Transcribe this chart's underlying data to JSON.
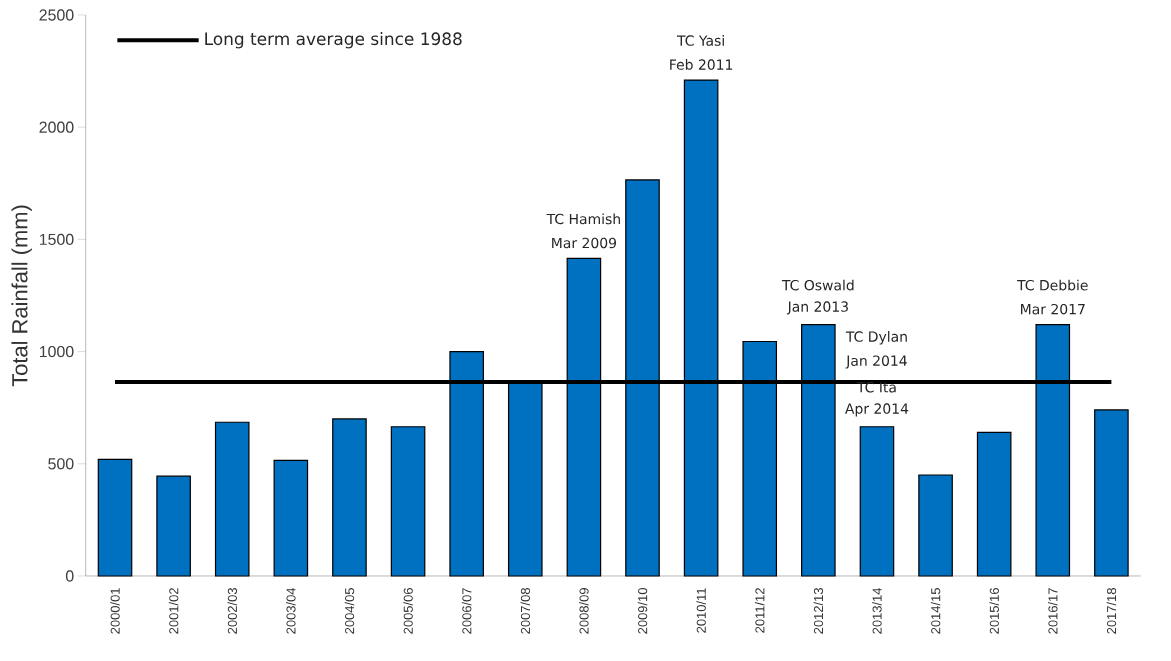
{
  "chart_data": {
    "type": "bar",
    "ylabel": "Total Rainfall (mm)",
    "categories": [
      "2000/01",
      "2001/02",
      "2002/03",
      "2003/04",
      "2004/05",
      "2005/06",
      "2006/07",
      "2007/08",
      "2008/09",
      "2009/10",
      "2010/11",
      "2011/12",
      "2012/13",
      "2013/14",
      "2014/15",
      "2015/16",
      "2016/17",
      "2017/18"
    ],
    "values": [
      520,
      445,
      685,
      515,
      700,
      665,
      1000,
      860,
      1415,
      1765,
      2210,
      1045,
      1120,
      665,
      450,
      640,
      1120,
      740
    ],
    "color": "#0070c0",
    "ylim": [
      0,
      2500
    ],
    "yticks": [
      0,
      500,
      1000,
      1500,
      2000,
      2500
    ],
    "ref_lines": [
      {
        "axis": "y",
        "value": 865,
        "label": "Long term average since 1988",
        "color": "#000000"
      }
    ],
    "legend": "top left",
    "annotations": [
      {
        "text": "TC Hamish",
        "x": "2008/09",
        "y": 1415
      },
      {
        "text": "Mar 2009",
        "x": "2008/09",
        "y": 1415
      },
      {
        "text": "TC Yasi",
        "x": "2010/11",
        "y": 2210
      },
      {
        "text": "Feb 2011",
        "x": "2010/11",
        "y": 2210
      },
      {
        "text": "TC Oswald",
        "x": "2012/13",
        "y": 1120
      },
      {
        "text": "Jan 2013",
        "x": "2012/13",
        "y": 1120
      },
      "TC Dylan",
      "Jan 2014",
      {
        "text": "TC Ita",
        "x": "2013/14",
        "y": 665
      },
      {
        "text": "Apr 2014",
        "x": "2013/14",
        "y": 665
      },
      {
        "text": "TC Debbie",
        "x": "2016/17",
        "y": 1120
      },
      {
        "text": "Mar 2017",
        "x": "2016/17",
        "y": 1120
      }
    ]
  }
}
